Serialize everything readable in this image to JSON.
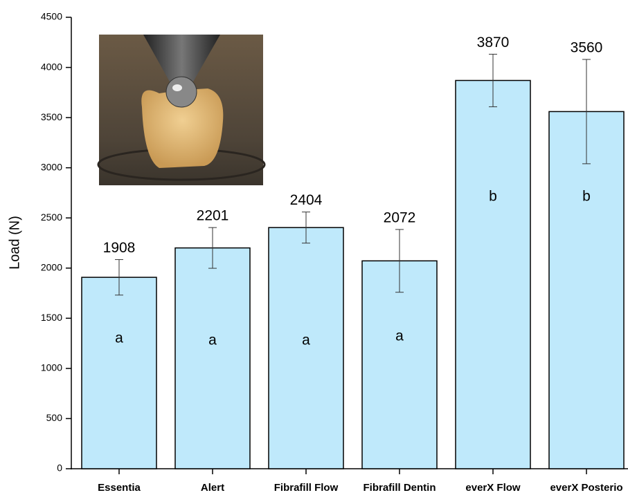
{
  "chart_data": {
    "type": "bar",
    "y_label": "Load (N)",
    "categories": [
      "Essentia",
      "Alert",
      "Fibrafill Flow",
      "Fibrafill Dentin",
      "everX Flow",
      "everX Posterio"
    ],
    "values": [
      1908,
      2201,
      2404,
      2072,
      3870,
      3560
    ],
    "errors": [
      177,
      203,
      155,
      313,
      262,
      520
    ],
    "group_labels": [
      "a",
      "a",
      "a",
      "a",
      "b",
      "b"
    ],
    "color": "#bfe9fb",
    "ylim": [
      0,
      4500
    ],
    "yticks": [
      0,
      500,
      1000,
      1500,
      2000,
      2500,
      3000,
      3500,
      4000,
      4500
    ]
  }
}
